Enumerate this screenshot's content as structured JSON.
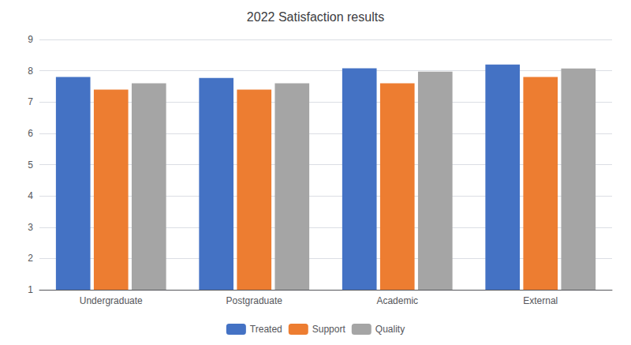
{
  "chart_data": {
    "type": "bar",
    "title": "2022 Satisfaction results",
    "categories": [
      "Undergraduate",
      "Postgraduate",
      "Academic",
      "External"
    ],
    "series": [
      {
        "name": "Treated",
        "color": "#4472C4",
        "values": [
          7.8,
          7.77,
          8.08,
          8.2
        ]
      },
      {
        "name": "Support",
        "color": "#ED7D31",
        "values": [
          7.4,
          7.4,
          7.6,
          7.8
        ]
      },
      {
        "name": "Quality",
        "color": "#A5A5A5",
        "values": [
          7.6,
          7.6,
          7.97,
          8.07
        ]
      }
    ],
    "ylim": [
      1,
      9
    ],
    "yticks": [
      1,
      2,
      3,
      4,
      5,
      6,
      7,
      8,
      9
    ],
    "grid": true,
    "legend": "bottom"
  }
}
